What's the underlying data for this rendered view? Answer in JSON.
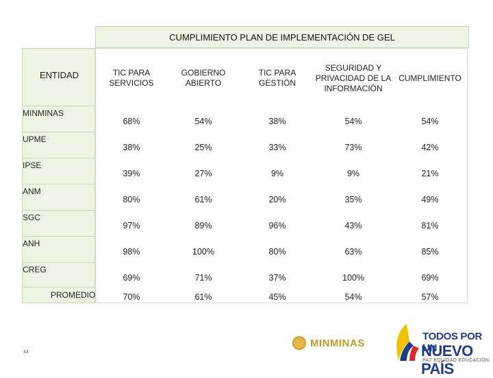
{
  "title": "CUMPLIMIENTO PLAN DE IMPLEMENTACIÓN DE GEL",
  "entity_header": "ENTIDAD",
  "columns": [
    "TIC PARA SERVICIOS",
    "GOBIERNO ABIERTO",
    "TIC PARA GESTIÓN",
    "SEGURIDAD Y PRIVACIDAD DE LA INFORMACIÓN",
    "CUMPLIMIENTO"
  ],
  "rows": [
    {
      "entity": "MINMINAS",
      "values": [
        "68%",
        "54%",
        "38%",
        "54%",
        "54%"
      ]
    },
    {
      "entity": "UPME",
      "values": [
        "38%",
        "25%",
        "33%",
        "73%",
        "42%"
      ]
    },
    {
      "entity": "IPSE",
      "values": [
        "39%",
        "27%",
        "9%",
        "9%",
        "21%"
      ]
    },
    {
      "entity": "ANM",
      "values": [
        "80%",
        "61%",
        "20%",
        "35%",
        "49%"
      ]
    },
    {
      "entity": "SGC",
      "values": [
        "97%",
        "89%",
        "96%",
        "43%",
        "81%"
      ]
    },
    {
      "entity": "ANH",
      "values": [
        "98%",
        "100%",
        "80%",
        "63%",
        "85%"
      ]
    },
    {
      "entity": "CREG",
      "values": [
        "69%",
        "71%",
        "37%",
        "100%",
        "69%"
      ]
    }
  ],
  "average": {
    "label": "PROMEDIO",
    "values": [
      "70%",
      "61%",
      "45%",
      "54%",
      "57%"
    ]
  },
  "page_number": "44",
  "logos": {
    "minminas": "MINMINAS",
    "tdp_line1": "TODOS POR UN",
    "tdp_line2": "NUEVO PAÍS",
    "tdp_line3": "PAZ EQUIDAD EDUCACIÓN"
  },
  "colors": {
    "header_fill": "#eef4e4",
    "border": "#c9d6b5",
    "brand_blue": "#1f3c88",
    "gold": "#c19a2e"
  }
}
